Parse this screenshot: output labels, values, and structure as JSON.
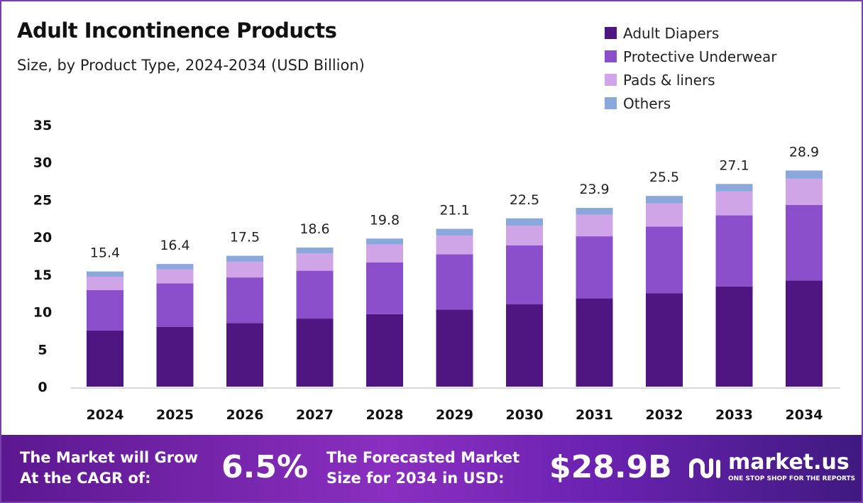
{
  "chart_data": {
    "type": "bar",
    "stacked": true,
    "title": "Adult Incontinence Products",
    "subtitle": "Size, by Product Type, 2024-2034 (USD Billion)",
    "categories": [
      "2024",
      "2025",
      "2026",
      "2027",
      "2028",
      "2029",
      "2030",
      "2031",
      "2032",
      "2033",
      "2034"
    ],
    "series": [
      {
        "name": "Adult Diapers",
        "color": "#4f1681",
        "values": [
          7.5,
          8.0,
          8.5,
          9.1,
          9.7,
          10.3,
          11.0,
          11.8,
          12.5,
          13.4,
          14.2
        ]
      },
      {
        "name": "Protective Underwear",
        "color": "#8b4fcc",
        "values": [
          5.4,
          5.8,
          6.1,
          6.4,
          6.9,
          7.4,
          7.9,
          8.3,
          8.9,
          9.5,
          10.1
        ]
      },
      {
        "name": "Pads & liners",
        "color": "#cfa5e8",
        "values": [
          1.8,
          1.9,
          2.1,
          2.3,
          2.4,
          2.5,
          2.6,
          2.9,
          3.1,
          3.2,
          3.5
        ]
      },
      {
        "name": "Others",
        "color": "#8aa8dc",
        "values": [
          0.7,
          0.7,
          0.8,
          0.8,
          0.8,
          0.9,
          1.0,
          0.9,
          1.0,
          1.0,
          1.1
        ]
      }
    ],
    "totals": [
      "15.4",
      "16.4",
      "17.5",
      "18.6",
      "19.8",
      "21.1",
      "22.5",
      "23.9",
      "25.5",
      "27.1",
      "28.9"
    ],
    "ylim": [
      0,
      35
    ],
    "yticks": [
      "0",
      "5",
      "10",
      "15",
      "20",
      "25",
      "30",
      "35"
    ],
    "grid": false,
    "legend_position": "top-right"
  },
  "banner": {
    "cagr_label": [
      "The Market will Grow",
      "At the CAGR of:"
    ],
    "cagr_value": "6.5%",
    "forecast_label": [
      "The Forecasted Market",
      "Size for 2034 in USD:"
    ],
    "forecast_value": "$28.9B",
    "logo_name": "market.us",
    "logo_tagline": "ONE STOP SHOP FOR THE REPORTS"
  }
}
